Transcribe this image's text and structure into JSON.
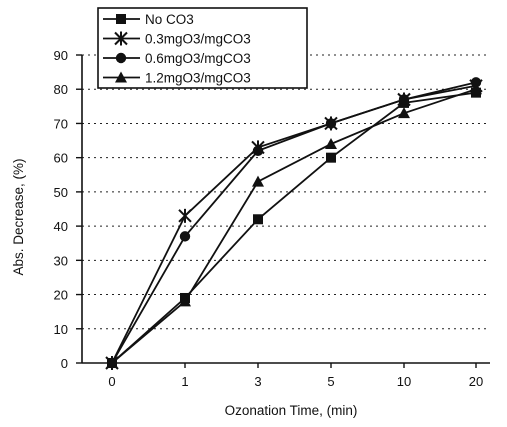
{
  "chart_data": {
    "type": "line",
    "title": "",
    "xlabel": "Ozonation Time, (min)",
    "ylabel": "Abs. Decrease, (%)",
    "categories": [
      "0",
      "1",
      "3",
      "5",
      "10",
      "20"
    ],
    "ylim": [
      0,
      90
    ],
    "yticks": [
      "0",
      "10",
      "20",
      "30",
      "40",
      "50",
      "60",
      "70",
      "80",
      "90"
    ],
    "grid": "horizontal dashed",
    "legend_position": "top-left, above plot",
    "series": [
      {
        "name": "No CO3",
        "marker": "square",
        "values": [
          0,
          19,
          42,
          60,
          76,
          79
        ]
      },
      {
        "name": "0.3mgO3/mgCO3",
        "marker": "star",
        "values": [
          0,
          43,
          63,
          70,
          77,
          81
        ]
      },
      {
        "name": "0.6mgO3/mgCO3",
        "marker": "circle",
        "values": [
          0,
          37,
          62,
          70,
          77,
          82
        ]
      },
      {
        "name": "1.2mgO3/mgCO3",
        "marker": "triangle",
        "values": [
          0,
          18,
          53,
          64,
          73,
          80
        ]
      }
    ]
  }
}
